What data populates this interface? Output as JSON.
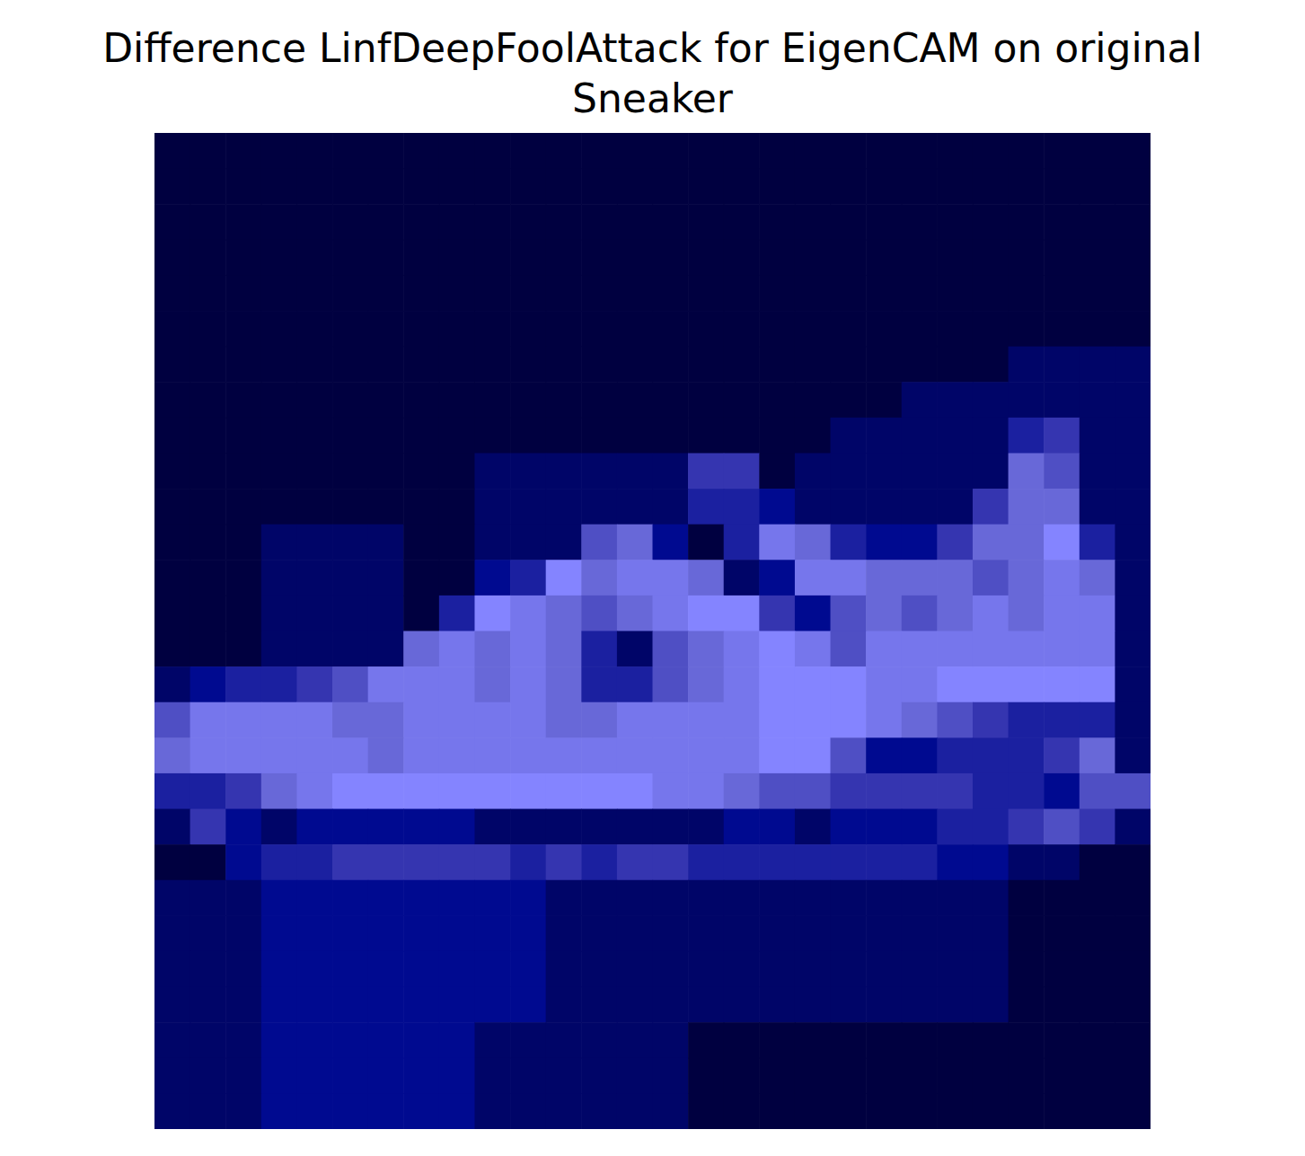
{
  "chart_data": {
    "type": "heatmap",
    "title": "Difference LinfDeepFoolAttack for EigenCAM on original\nSneaker",
    "tick_labels": false,
    "cells": [
      [
        0,
        0,
        0,
        0,
        0,
        0,
        0,
        0,
        0,
        0,
        0,
        0,
        0,
        0,
        0,
        0,
        0,
        0,
        0,
        0,
        0,
        0,
        0,
        0,
        0,
        0,
        0,
        0
      ],
      [
        0,
        0,
        0,
        0,
        0,
        0,
        0,
        0,
        0,
        0,
        0,
        0,
        0,
        0,
        0,
        0,
        0,
        0,
        0,
        0,
        0,
        0,
        0,
        0,
        0,
        0,
        0,
        0
      ],
      [
        0,
        0,
        0,
        0,
        0,
        0,
        0,
        0,
        0,
        0,
        0,
        0,
        0,
        0,
        0,
        0,
        0,
        0,
        0,
        0,
        0,
        0,
        0,
        0,
        0,
        0,
        0,
        0
      ],
      [
        0,
        0,
        0,
        0,
        0,
        0,
        0,
        0,
        0,
        0,
        0,
        0,
        0,
        0,
        0,
        0,
        0,
        0,
        0,
        0,
        0,
        0,
        0,
        0,
        0,
        0,
        0,
        0
      ],
      [
        0,
        0,
        0,
        0,
        0,
        0,
        0,
        0,
        0,
        0,
        0,
        0,
        0,
        0,
        0,
        0,
        0,
        0,
        0,
        0,
        0,
        0,
        0,
        0,
        0,
        0,
        0,
        0
      ],
      [
        0,
        0,
        0,
        0,
        0,
        0,
        0,
        0,
        0,
        0,
        0,
        0,
        0,
        0,
        0,
        0,
        0,
        0,
        0,
        0,
        0,
        0,
        0,
        0,
        0,
        0,
        0,
        0
      ],
      [
        0,
        0,
        0,
        0,
        0,
        0,
        0,
        0,
        0,
        0,
        0,
        0,
        0,
        0,
        0,
        0,
        0,
        0,
        0,
        0,
        0,
        0,
        0,
        0,
        1,
        1,
        1,
        1
      ],
      [
        0,
        0,
        0,
        0,
        0,
        0,
        0,
        0,
        0,
        0,
        0,
        0,
        0,
        0,
        0,
        0,
        0,
        0,
        0,
        0,
        0,
        1,
        1,
        1,
        1,
        1,
        1,
        1
      ],
      [
        0,
        0,
        0,
        0,
        0,
        0,
        0,
        0,
        0,
        0,
        0,
        0,
        0,
        0,
        0,
        0,
        0,
        0,
        0,
        1,
        1,
        1,
        1,
        1,
        3,
        4,
        1,
        1
      ],
      [
        0,
        0,
        0,
        0,
        0,
        0,
        0,
        0,
        0,
        1,
        1,
        1,
        1,
        1,
        1,
        4,
        4,
        0,
        1,
        1,
        1,
        1,
        1,
        1,
        6,
        5,
        1,
        1
      ],
      [
        0,
        0,
        0,
        0,
        0,
        0,
        0,
        0,
        0,
        1,
        1,
        1,
        1,
        1,
        1,
        3,
        3,
        2,
        1,
        1,
        1,
        1,
        1,
        4,
        6,
        6,
        1,
        1
      ],
      [
        0,
        0,
        0,
        1,
        1,
        1,
        1,
        0,
        0,
        1,
        1,
        1,
        5,
        6,
        2,
        0,
        3,
        7,
        6,
        3,
        2,
        2,
        4,
        6,
        6,
        8,
        3,
        1
      ],
      [
        0,
        0,
        0,
        1,
        1,
        1,
        1,
        0,
        0,
        2,
        3,
        8,
        6,
        7,
        7,
        6,
        1,
        2,
        7,
        7,
        6,
        6,
        6,
        5,
        6,
        7,
        6,
        1
      ],
      [
        0,
        0,
        0,
        1,
        1,
        1,
        1,
        0,
        3,
        8,
        7,
        6,
        5,
        6,
        7,
        8,
        8,
        4,
        2,
        5,
        6,
        5,
        6,
        7,
        6,
        7,
        7,
        1
      ],
      [
        0,
        0,
        0,
        1,
        1,
        1,
        1,
        6,
        7,
        6,
        7,
        6,
        3,
        1,
        5,
        6,
        7,
        8,
        7,
        5,
        7,
        7,
        7,
        7,
        7,
        7,
        7,
        1
      ],
      [
        1,
        2,
        3,
        3,
        4,
        5,
        7,
        7,
        7,
        6,
        7,
        6,
        3,
        3,
        5,
        6,
        7,
        8,
        8,
        8,
        7,
        7,
        8,
        8,
        8,
        8,
        8,
        1
      ],
      [
        5,
        7,
        7,
        7,
        7,
        6,
        6,
        7,
        7,
        7,
        7,
        6,
        6,
        7,
        7,
        7,
        7,
        8,
        8,
        8,
        7,
        6,
        5,
        4,
        3,
        3,
        3,
        1
      ],
      [
        6,
        7,
        7,
        7,
        7,
        7,
        6,
        7,
        7,
        7,
        7,
        7,
        7,
        7,
        7,
        7,
        7,
        8,
        8,
        5,
        2,
        2,
        3,
        3,
        3,
        4,
        6,
        1
      ],
      [
        3,
        3,
        4,
        6,
        7,
        8,
        8,
        8,
        8,
        8,
        8,
        8,
        8,
        8,
        7,
        7,
        6,
        5,
        5,
        4,
        4,
        4,
        4,
        3,
        3,
        2,
        5,
        5
      ],
      [
        1,
        4,
        2,
        1,
        2,
        2,
        2,
        2,
        2,
        1,
        1,
        1,
        1,
        1,
        1,
        1,
        2,
        2,
        1,
        2,
        2,
        2,
        3,
        3,
        4,
        5,
        4,
        1
      ],
      [
        0,
        0,
        2,
        3,
        3,
        4,
        4,
        4,
        4,
        4,
        3,
        4,
        3,
        4,
        4,
        3,
        3,
        3,
        3,
        3,
        3,
        3,
        2,
        2,
        1,
        1,
        0,
        0
      ],
      [
        1,
        1,
        1,
        2,
        2,
        2,
        2,
        2,
        2,
        2,
        2,
        1,
        1,
        1,
        1,
        1,
        1,
        1,
        1,
        1,
        1,
        1,
        1,
        1,
        0,
        0,
        0,
        0
      ],
      [
        1,
        1,
        1,
        2,
        2,
        2,
        2,
        2,
        2,
        2,
        2,
        1,
        1,
        1,
        1,
        1,
        1,
        1,
        1,
        1,
        1,
        1,
        1,
        1,
        0,
        0,
        0,
        0
      ],
      [
        1,
        1,
        1,
        2,
        2,
        2,
        2,
        2,
        2,
        2,
        2,
        1,
        1,
        1,
        1,
        1,
        1,
        1,
        1,
        1,
        1,
        1,
        1,
        1,
        0,
        0,
        0,
        0
      ],
      [
        1,
        1,
        1,
        2,
        2,
        2,
        2,
        2,
        2,
        2,
        2,
        1,
        1,
        1,
        1,
        1,
        1,
        1,
        1,
        1,
        1,
        1,
        1,
        1,
        0,
        0,
        0,
        0
      ],
      [
        1,
        1,
        1,
        2,
        2,
        2,
        2,
        2,
        2,
        1,
        1,
        1,
        1,
        1,
        1,
        0,
        0,
        0,
        0,
        0,
        0,
        0,
        0,
        0,
        0,
        0,
        0,
        0
      ],
      [
        1,
        1,
        1,
        2,
        2,
        2,
        2,
        2,
        2,
        1,
        1,
        1,
        1,
        1,
        1,
        0,
        0,
        0,
        0,
        0,
        0,
        0,
        0,
        0,
        0,
        0,
        0,
        0
      ],
      [
        1,
        1,
        1,
        2,
        2,
        2,
        2,
        2,
        2,
        1,
        1,
        1,
        1,
        1,
        1,
        0,
        0,
        0,
        0,
        0,
        0,
        0,
        0,
        0,
        0,
        0,
        0,
        0
      ]
    ]
  }
}
